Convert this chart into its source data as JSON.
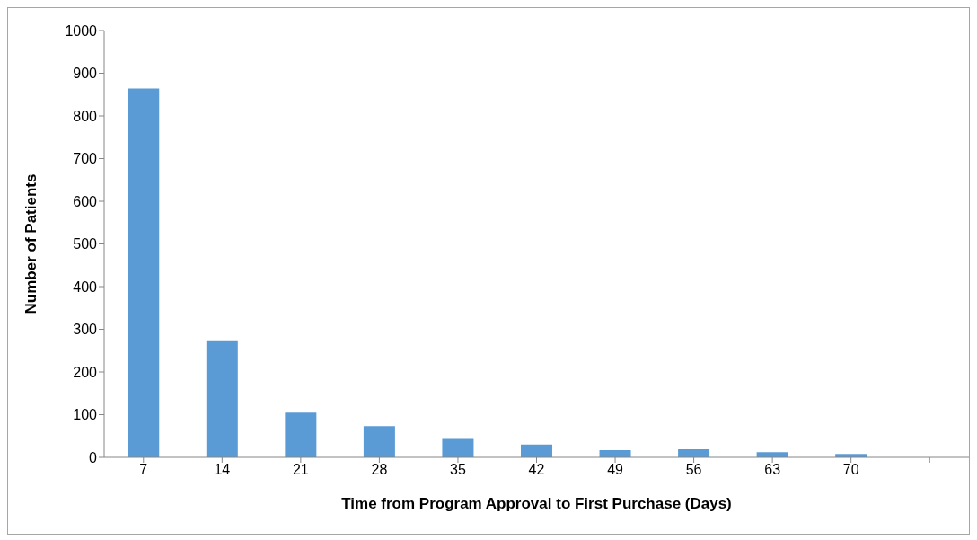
{
  "chart_data": {
    "type": "bar",
    "xlabel": "Time from Program Approval to First Purchase (Days)",
    "ylabel": "Number of Patients",
    "categories": [
      "7",
      "14",
      "21",
      "28",
      "35",
      "42",
      "49",
      "56",
      "63",
      "70",
      null
    ],
    "values": [
      864,
      274,
      105,
      73,
      43,
      30,
      17,
      19,
      12,
      8,
      null
    ],
    "color": "#5b9bd5",
    "ylim": [
      0,
      1000
    ],
    "yticks": [
      0,
      100,
      200,
      300,
      400,
      500,
      600,
      700,
      800,
      900,
      1000
    ],
    "grid": false,
    "legend": false
  }
}
